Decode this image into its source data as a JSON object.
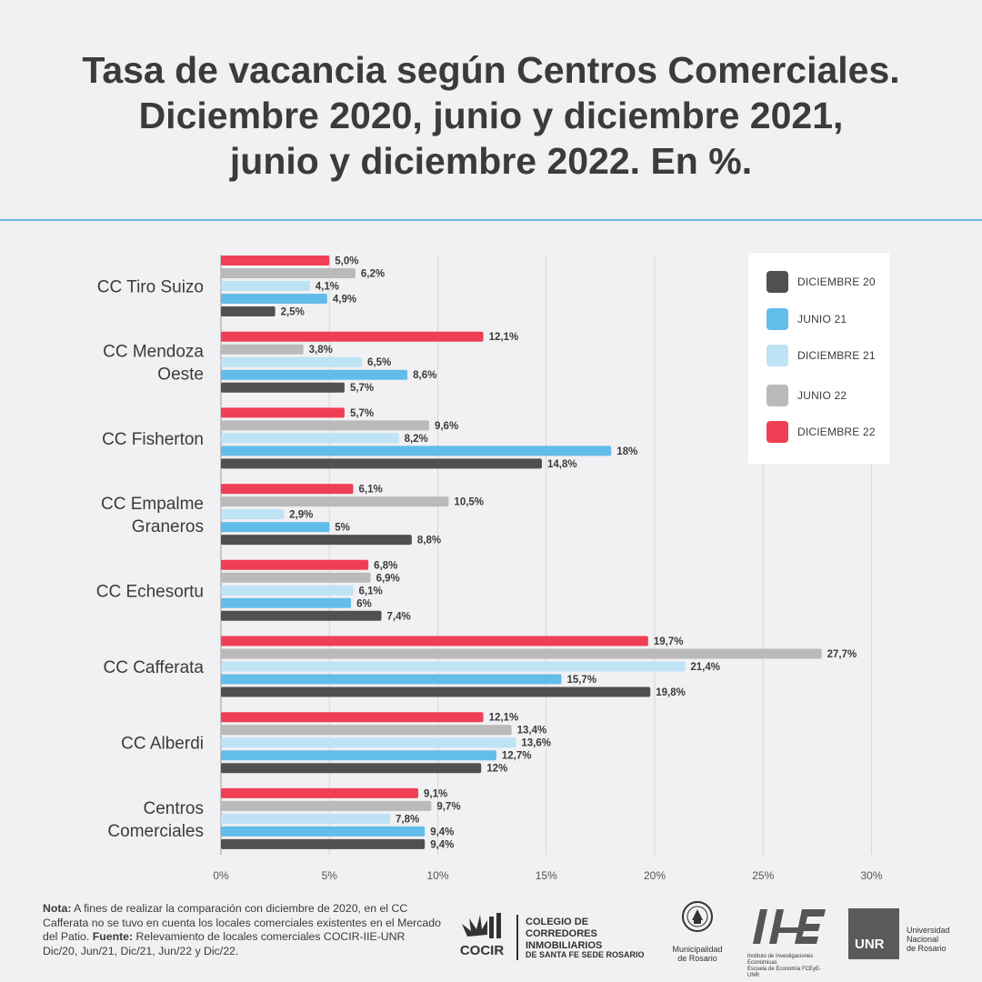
{
  "title_lines": [
    "Tasa de vacancia según Centros Comerciales.",
    "Diciembre 2020, junio y diciembre 2021,",
    "junio y diciembre 2022. En %."
  ],
  "colors": {
    "dic20": "#505050",
    "jun21": "#62bde8",
    "dic21": "#bde3f4",
    "jun22": "#bababa",
    "dic22": "#ef3f55",
    "gridline": "#d7d6d8",
    "rule": "#6ab8de"
  },
  "legend": [
    {
      "key": "dic20",
      "label": "DICIEMBRE 20"
    },
    {
      "key": "jun21",
      "label": "JUNIO 21"
    },
    {
      "key": "dic21",
      "label": "DICIEMBRE 21"
    },
    {
      "key": "jun22",
      "label": "JUNIO 22"
    },
    {
      "key": "dic22",
      "label": "DICIEMBRE 22"
    }
  ],
  "chart_data": {
    "type": "bar",
    "orientation": "horizontal",
    "title": "Tasa de vacancia según Centros Comerciales. Diciembre 2020, junio y diciembre 2021, junio y diciembre 2022. En %.",
    "xlim": [
      0,
      30
    ],
    "x_ticks": [
      "0%",
      "5%",
      "10%",
      "15%",
      "20%",
      "25%",
      "30%"
    ],
    "grid": true,
    "legend_position": "top-right",
    "categories": [
      [
        "CC Tiro Suizo"
      ],
      [
        "CC Mendoza",
        "Oeste"
      ],
      [
        "CC Fisherton"
      ],
      [
        "CC Empalme",
        "Graneros"
      ],
      [
        "CC Echesortu"
      ],
      [
        "CC Cafferata"
      ],
      [
        "CC Alberdi"
      ],
      [
        "Centros",
        "Comerciales"
      ]
    ],
    "series": [
      {
        "key": "dic22",
        "name": "DICIEMBRE 22",
        "values": [
          5.0,
          12.1,
          5.7,
          6.1,
          6.8,
          19.7,
          12.1,
          9.1
        ],
        "labels": [
          "5,0%",
          "12,1%",
          "5,7%",
          "6,1%",
          "6,8%",
          "19,7%",
          "12,1%",
          "9,1%"
        ]
      },
      {
        "key": "jun22",
        "name": "JUNIO 22",
        "values": [
          6.2,
          3.8,
          9.6,
          10.5,
          6.9,
          27.7,
          13.4,
          9.7
        ],
        "labels": [
          "6,2%",
          "3,8%",
          "9,6%",
          "10,5%",
          "6,9%",
          "27,7%",
          "13,4%",
          "9,7%"
        ]
      },
      {
        "key": "dic21",
        "name": "DICIEMBRE 21",
        "values": [
          4.1,
          6.5,
          8.2,
          2.9,
          6.1,
          21.4,
          13.6,
          7.8
        ],
        "labels": [
          "4,1%",
          "6,5%",
          "8,2%",
          "2,9%",
          "6,1%",
          "21,4%",
          "13,6%",
          "7,8%"
        ]
      },
      {
        "key": "jun21",
        "name": "JUNIO 21",
        "values": [
          4.9,
          8.6,
          18,
          5,
          6,
          15.7,
          12.7,
          9.4
        ],
        "labels": [
          "4,9%",
          "8,6%",
          "18%",
          "5%",
          "6%",
          "15,7%",
          "12,7%",
          "9,4%"
        ]
      },
      {
        "key": "dic20",
        "name": "DICIEMBRE 20",
        "values": [
          2.5,
          5.7,
          14.8,
          8.8,
          7.4,
          19.8,
          12,
          9.4
        ],
        "labels": [
          "2,5%",
          "5,7%",
          "14,8%",
          "8,8%",
          "7,4%",
          "19,8%",
          "12%",
          "9,4%"
        ]
      }
    ]
  },
  "note": {
    "label": "Nota:",
    "text1": " A fines de realizar la comparación con diciembre de 2020, en el CC Cafferata no se tuvo en cuenta los locales comerciales existentes en el Mercado del Patio. ",
    "label2": "Fuente:",
    "text2": " Relevamiento de locales comerciales COCIR-IIE-UNR Dic/20, Jun/21, Dic/21, Jun/22 y Dic/22."
  },
  "logos": {
    "cocir_short": "COCIR",
    "cocir_line1": "COLEGIO DE CORREDORES",
    "cocir_line2": "INMOBILIARIOS",
    "cocir_line3": "DE SANTA FE SEDE ROSARIO",
    "muni_line1": "Municipalidad",
    "muni_line2": "de Rosario",
    "iie_text": "Instituto de Investigaciones Económicas",
    "iie_text2": "Escuela de Economía FCEyE-UNR",
    "unr": "UNR",
    "unr_line1": "Universidad",
    "unr_line2": "Nacional",
    "unr_line3": "de Rosario"
  }
}
